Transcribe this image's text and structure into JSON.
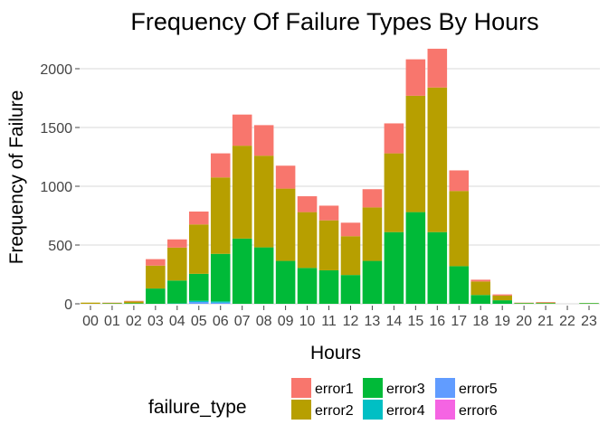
{
  "chart_data": {
    "type": "bar",
    "stacked": true,
    "title": "Frequency Of Failure Types By Hours",
    "xlabel": "Hours",
    "ylabel": "Frequency of Failure",
    "ylim": [
      0,
      2200
    ],
    "yticks": [
      0,
      500,
      1000,
      1500,
      2000
    ],
    "grid": "horizontal",
    "legend_title": "failure_type",
    "legend_position": "bottom",
    "categories": [
      "00",
      "01",
      "02",
      "03",
      "04",
      "05",
      "06",
      "07",
      "08",
      "09",
      "10",
      "11",
      "12",
      "13",
      "14",
      "15",
      "16",
      "17",
      "18",
      "19",
      "20",
      "21",
      "22",
      "23"
    ],
    "series": [
      {
        "name": "error1",
        "color": "#F8766D",
        "values": [
          0,
          2,
          5,
          55,
          70,
          110,
          205,
          265,
          260,
          195,
          135,
          125,
          115,
          155,
          255,
          310,
          330,
          175,
          15,
          10,
          2,
          5,
          0,
          0
        ]
      },
      {
        "name": "error2",
        "color": "#B79F00",
        "values": [
          10,
          5,
          15,
          195,
          280,
          420,
          650,
          790,
          780,
          615,
          475,
          425,
          330,
          455,
          670,
          990,
          1230,
          640,
          115,
          40,
          3,
          5,
          0,
          2
        ]
      },
      {
        "name": "error3",
        "color": "#00BA38",
        "values": [
          0,
          3,
          5,
          130,
          195,
          230,
          405,
          555,
          480,
          365,
          305,
          285,
          245,
          365,
          610,
          780,
          610,
          320,
          75,
          30,
          5,
          5,
          0,
          5
        ]
      },
      {
        "name": "error4",
        "color": "#00BFC4",
        "values": [
          0,
          0,
          0,
          0,
          3,
          10,
          10,
          0,
          0,
          0,
          0,
          0,
          0,
          0,
          0,
          0,
          0,
          0,
          0,
          0,
          0,
          0,
          0,
          0
        ]
      },
      {
        "name": "error5",
        "color": "#619CFF",
        "values": [
          0,
          0,
          0,
          0,
          0,
          15,
          10,
          0,
          0,
          0,
          0,
          0,
          0,
          0,
          0,
          0,
          0,
          0,
          0,
          0,
          0,
          0,
          0,
          0
        ]
      },
      {
        "name": "error6",
        "color": "#F564E3",
        "values": [
          0,
          0,
          0,
          0,
          0,
          0,
          0,
          0,
          0,
          0,
          0,
          0,
          0,
          0,
          0,
          0,
          0,
          0,
          0,
          0,
          0,
          0,
          0,
          0
        ]
      }
    ]
  }
}
